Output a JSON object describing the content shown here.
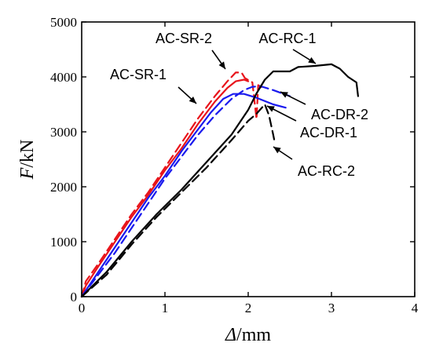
{
  "chart_data": {
    "type": "line",
    "title": "",
    "xlabel_sym": "Δ",
    "xlabel_unit": "/mm",
    "ylabel_sym": "F",
    "ylabel_unit": "/kN",
    "xlim": [
      0,
      4
    ],
    "ylim": [
      0,
      5000
    ],
    "xticks": [
      0,
      1,
      2,
      3,
      4
    ],
    "yticks": [
      0,
      1000,
      2000,
      3000,
      4000,
      5000
    ],
    "xtick_labels": [
      "0",
      "1",
      "2",
      "3",
      "4"
    ],
    "ytick_labels": [
      "0",
      "1000",
      "2000",
      "3000",
      "4000",
      "5000"
    ],
    "grid": false,
    "colors": {
      "red": "#e8141b",
      "blue": "#1a1aee",
      "black": "#000000"
    },
    "series": [
      {
        "name": "AC-SR-1",
        "color": "red",
        "dash": "solid",
        "points": [
          [
            0,
            0
          ],
          [
            0.05,
            200
          ],
          [
            0.2,
            550
          ],
          [
            0.4,
            1000
          ],
          [
            0.6,
            1450
          ],
          [
            0.8,
            1850
          ],
          [
            1.0,
            2300
          ],
          [
            1.2,
            2700
          ],
          [
            1.4,
            3150
          ],
          [
            1.6,
            3550
          ],
          [
            1.75,
            3800
          ],
          [
            1.85,
            3920
          ],
          [
            1.95,
            3950
          ],
          [
            2.0,
            3920
          ]
        ]
      },
      {
        "name": "AC-SR-2",
        "color": "red",
        "dash": "dashed",
        "points": [
          [
            0,
            0
          ],
          [
            0.05,
            280
          ],
          [
            0.2,
            600
          ],
          [
            0.4,
            1050
          ],
          [
            0.6,
            1500
          ],
          [
            0.8,
            1900
          ],
          [
            1.0,
            2350
          ],
          [
            1.2,
            2800
          ],
          [
            1.4,
            3250
          ],
          [
            1.6,
            3650
          ],
          [
            1.75,
            3920
          ],
          [
            1.85,
            4080
          ],
          [
            1.92,
            4080
          ],
          [
            1.96,
            3980
          ],
          [
            2.05,
            3900
          ],
          [
            2.1,
            3230
          ],
          [
            2.12,
            3850
          ],
          [
            2.2,
            3780
          ]
        ]
      },
      {
        "name": "AC-DR-1",
        "color": "blue",
        "dash": "solid",
        "points": [
          [
            0,
            0
          ],
          [
            0.2,
            450
          ],
          [
            0.4,
            900
          ],
          [
            0.6,
            1350
          ],
          [
            0.8,
            1800
          ],
          [
            1.0,
            2200
          ],
          [
            1.2,
            2650
          ],
          [
            1.4,
            3050
          ],
          [
            1.55,
            3350
          ],
          [
            1.7,
            3600
          ],
          [
            1.82,
            3690
          ],
          [
            1.95,
            3690
          ],
          [
            2.1,
            3620
          ],
          [
            2.3,
            3500
          ],
          [
            2.45,
            3440
          ]
        ]
      },
      {
        "name": "AC-DR-2",
        "color": "blue",
        "dash": "dashed",
        "points": [
          [
            0,
            0
          ],
          [
            0.2,
            400
          ],
          [
            0.4,
            800
          ],
          [
            0.6,
            1250
          ],
          [
            0.8,
            1700
          ],
          [
            1.0,
            2150
          ],
          [
            1.2,
            2550
          ],
          [
            1.4,
            2950
          ],
          [
            1.6,
            3300
          ],
          [
            1.8,
            3600
          ],
          [
            1.95,
            3760
          ],
          [
            2.05,
            3820
          ],
          [
            2.15,
            3830
          ],
          [
            2.3,
            3760
          ],
          [
            2.5,
            3650
          ]
        ]
      },
      {
        "name": "AC-RC-1",
        "color": "black",
        "dash": "solid",
        "points": [
          [
            0,
            0
          ],
          [
            0.3,
            450
          ],
          [
            0.6,
            1000
          ],
          [
            0.9,
            1500
          ],
          [
            1.2,
            1950
          ],
          [
            1.5,
            2450
          ],
          [
            1.8,
            2950
          ],
          [
            2.0,
            3400
          ],
          [
            2.1,
            3700
          ],
          [
            2.2,
            3950
          ],
          [
            2.3,
            4100
          ],
          [
            2.5,
            4100
          ],
          [
            2.6,
            4180
          ],
          [
            2.8,
            4200
          ],
          [
            3.0,
            4230
          ],
          [
            3.1,
            4150
          ],
          [
            3.2,
            4000
          ],
          [
            3.3,
            3900
          ],
          [
            3.32,
            3650
          ]
        ]
      },
      {
        "name": "AC-RC-2",
        "color": "black",
        "dash": "dashed",
        "points": [
          [
            0,
            0
          ],
          [
            0.3,
            400
          ],
          [
            0.6,
            950
          ],
          [
            0.9,
            1450
          ],
          [
            1.2,
            1900
          ],
          [
            1.5,
            2350
          ],
          [
            1.8,
            2850
          ],
          [
            2.0,
            3200
          ],
          [
            2.1,
            3330
          ],
          [
            2.2,
            3500
          ],
          [
            2.25,
            3300
          ],
          [
            2.3,
            2950
          ],
          [
            2.32,
            2800
          ]
        ]
      }
    ],
    "annotations": [
      {
        "text": "AC-SR-2",
        "series": "AC-SR-2"
      },
      {
        "text": "AC-RC-1",
        "series": "AC-RC-1"
      },
      {
        "text": "AC-SR-1",
        "series": "AC-SR-1"
      },
      {
        "text": "AC-DR-2",
        "series": "AC-DR-2"
      },
      {
        "text": "AC-DR-1",
        "series": "AC-DR-1"
      },
      {
        "text": "AC-RC-2",
        "series": "AC-RC-2"
      }
    ]
  }
}
